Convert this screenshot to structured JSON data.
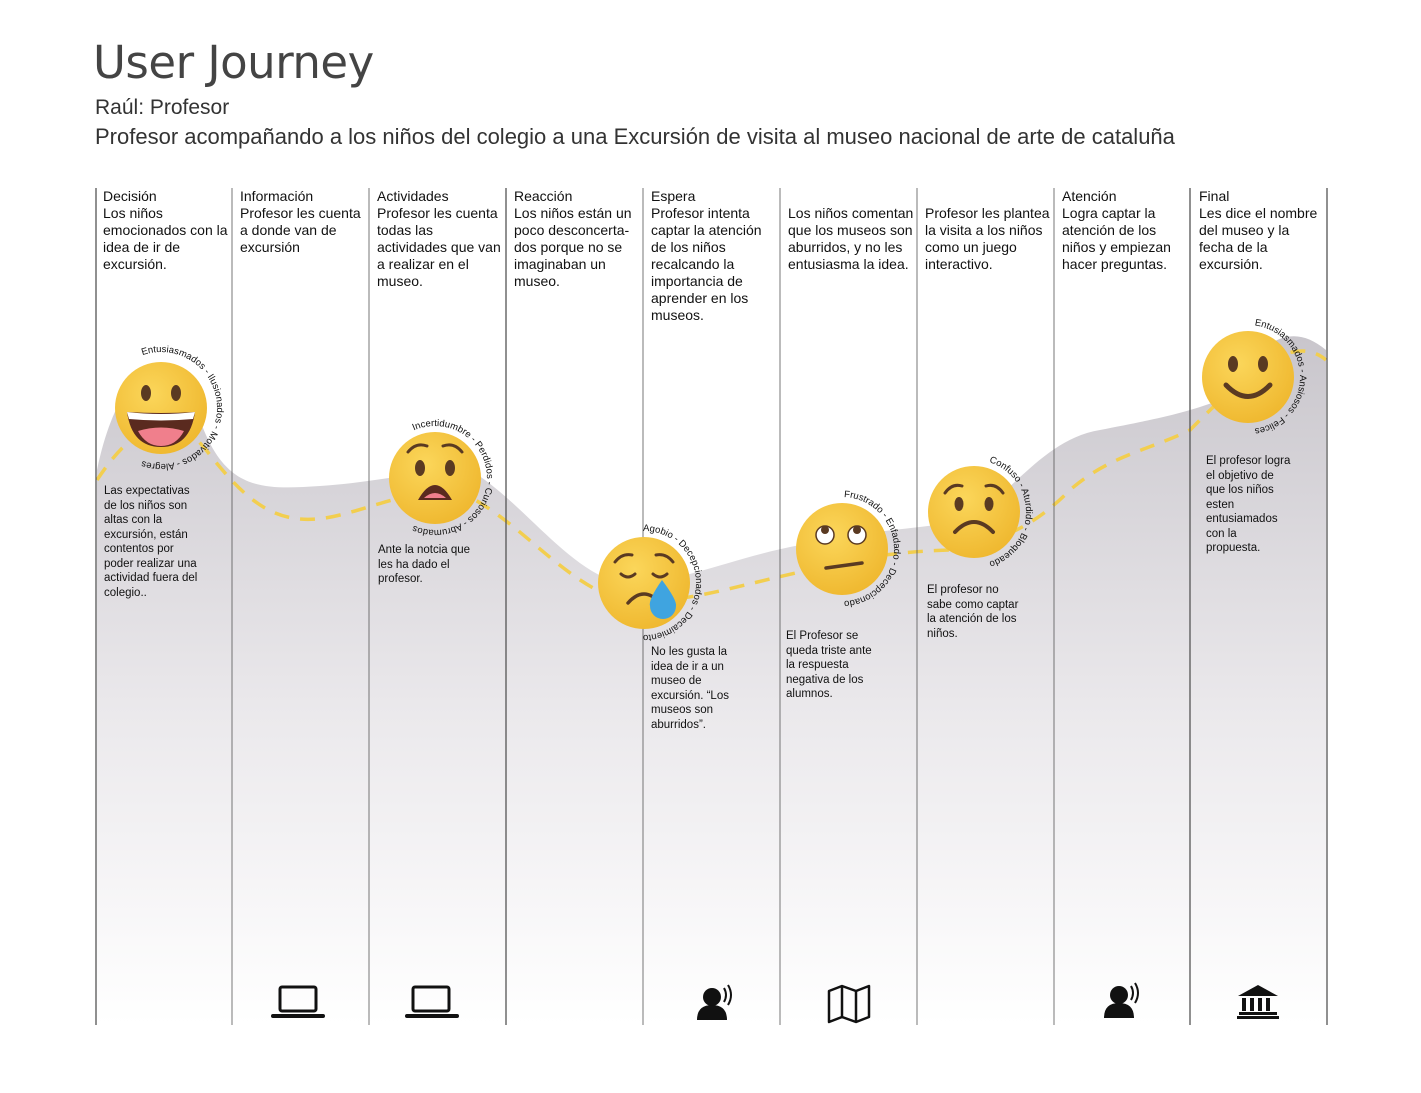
{
  "header": {
    "title": "User Journey",
    "subtitle": "Raúl: Profesor",
    "description": "Profesor acompañando a los niños del colegio a una Excursión de visita al museo nacional de arte de cataluña"
  },
  "stages": [
    {
      "stage": "Decisión",
      "text": "Los niños emocionados con la idea de ir de excursión.",
      "emotion": "Entusiasmados - Ilusionados - Motivados - Alegres",
      "face": "very-happy",
      "note": "Las expectativas de los niños son altas con la excursión, están contentos por poder realizar una actividad fuera del colegio..",
      "icon": ""
    },
    {
      "stage": "Información",
      "text": "Profesor les cuenta a donde van de excursión",
      "emotion": "",
      "face": "",
      "note": "",
      "icon": "laptop-icon"
    },
    {
      "stage": "Actividades",
      "text": "Profesor les cuenta todas las actividades que van a realizar en el museo.",
      "emotion": "Incertidumbre - Perdidos - Curiosos - Abrumados",
      "face": "anguished",
      "note": "Ante la notcia que les ha dado el profesor.",
      "icon": "laptop-icon"
    },
    {
      "stage": "Reacción",
      "text": "Los niños están un poco desconcerta-dos porque no se imaginaban un museo.",
      "emotion": "",
      "face": "",
      "note": "",
      "icon": ""
    },
    {
      "stage": "Espera",
      "text": "Profesor intenta captar la atención de los niños recalcando la importancia de aprender en los museos.",
      "emotion": "Agobio - Decepcionados - Decaimiento",
      "face": "crying",
      "note": "No les gusta la idea de ir a un museo de excursión. “Los museos son aburridos”.",
      "icon": "speaking-person-icon"
    },
    {
      "stage": "",
      "text": "Los niños comentan que los museos son aburridos, y no les entusiasma la idea.",
      "emotion": "Frustrado - Enfadado - Decepcionado",
      "face": "eye-roll",
      "note": "El Profesor se queda triste ante la respuesta negativa de los alumnos.",
      "icon": "map-icon"
    },
    {
      "stage": "",
      "text": "Profesor les plantea la visita a los niños como un juego interactivo.",
      "emotion": "Confuso - Aturdido - Bloqueado",
      "face": "worried",
      "note": "El profesor no sabe como captar la atención de los niños.",
      "icon": ""
    },
    {
      "stage": "Atención",
      "text": "Logra captar la atención de los niños y empiezan hacer preguntas.",
      "emotion": "",
      "face": "",
      "note": "",
      "icon": "speaking-person-icon"
    },
    {
      "stage": "Final",
      "text": "Les dice el nombre del museo y la fecha de la excursión.",
      "emotion": "Entusiasmados - Ansiosos - Felices",
      "face": "smile",
      "note": "El profesor logra el objetivo de que los niños esten entusiamados con la propuesta.",
      "icon": "museum-icon"
    }
  ],
  "colors": {
    "face": "#f6c33b",
    "journey_line": "#f2ce4f",
    "area": "#cfccd1",
    "divider": "#555555"
  }
}
